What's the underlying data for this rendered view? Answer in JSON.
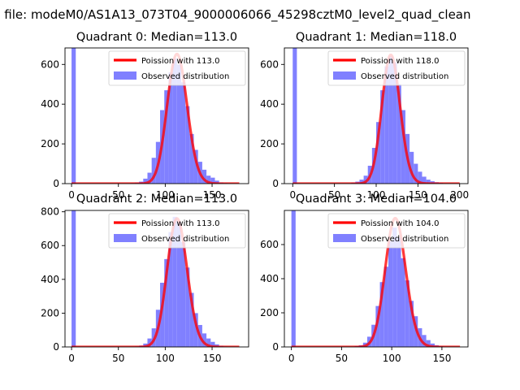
{
  "figure": {
    "suptitle": "n file: modeM0/AS1A13_073T04_9000006066_45298cztM0_level2_quad_clean"
  },
  "chart_data": [
    {
      "type": "bar",
      "title": "Quadrant 0: Median=113.0",
      "xlim": [
        -7,
        189
      ],
      "ylim": [
        0,
        683
      ],
      "xticks": [
        0,
        50,
        100,
        150
      ],
      "yticks": [
        0,
        200,
        400,
        600
      ],
      "legend_position": "top-right",
      "legend": [
        {
          "label": "Poission with 113.0",
          "color": "#ff0000",
          "kind": "line"
        },
        {
          "label": "Observed distribution",
          "color": "#8080ff",
          "kind": "patch"
        }
      ],
      "bin_width": 4.5,
      "observed": {
        "bin_starts": [
          0,
          63,
          67.5,
          72,
          76.5,
          81,
          85.5,
          90,
          94.5,
          99,
          103.5,
          108,
          112.5,
          117,
          121.5,
          126,
          130.5,
          135,
          139.5,
          144,
          148.5,
          153,
          157.5,
          162,
          166.5
        ],
        "counts": [
          690,
          3,
          5,
          10,
          25,
          55,
          130,
          210,
          370,
          470,
          560,
          630,
          600,
          510,
          390,
          250,
          170,
          110,
          70,
          40,
          30,
          15,
          6,
          3,
          2
        ]
      },
      "poisson": {
        "lambda": 113.0,
        "scale": 652,
        "x_min": 0,
        "x_max": 179
      }
    },
    {
      "type": "bar",
      "title": "Quadrant 1: Median=118.0",
      "xlim": [
        -10,
        210
      ],
      "ylim": [
        0,
        683
      ],
      "xticks": [
        0,
        50,
        100,
        150,
        200
      ],
      "yticks": [
        0,
        200,
        400,
        600
      ],
      "legend_position": "top-right",
      "legend": [
        {
          "label": "Poission with 118.0",
          "color": "#ff0000",
          "kind": "line"
        },
        {
          "label": "Observed distribution",
          "color": "#8080ff",
          "kind": "patch"
        }
      ],
      "bin_width": 5,
      "observed": {
        "bin_starts": [
          0,
          70,
          75,
          80,
          85,
          90,
          95,
          100,
          105,
          110,
          115,
          120,
          125,
          130,
          135,
          140,
          145,
          150,
          155,
          160,
          165,
          170,
          175,
          180
        ],
        "counts": [
          690,
          5,
          10,
          20,
          40,
          90,
          180,
          310,
          470,
          590,
          640,
          610,
          500,
          370,
          250,
          160,
          100,
          60,
          35,
          20,
          12,
          7,
          4,
          2
        ]
      },
      "poisson": {
        "lambda": 118.0,
        "scale": 648,
        "x_min": 0,
        "x_max": 200
      }
    },
    {
      "type": "bar",
      "title": "Quadrant 2: Median=113.0",
      "xlim": [
        -7,
        189
      ],
      "ylim": [
        0,
        808
      ],
      "xticks": [
        0,
        50,
        100,
        150
      ],
      "yticks": [
        0,
        200,
        400,
        600,
        800
      ],
      "legend_position": "top-right",
      "legend": [
        {
          "label": "Poission with 113.0",
          "color": "#ff0000",
          "kind": "line"
        },
        {
          "label": "Observed distribution",
          "color": "#8080ff",
          "kind": "patch"
        }
      ],
      "bin_width": 4.5,
      "observed": {
        "bin_starts": [
          0,
          67.5,
          72,
          76.5,
          81,
          85.5,
          90,
          94.5,
          99,
          103.5,
          108,
          112.5,
          117,
          121.5,
          126,
          130.5,
          135,
          139.5,
          144,
          148.5,
          153,
          157.5,
          162
        ],
        "counts": [
          810,
          3,
          8,
          20,
          50,
          110,
          220,
          380,
          520,
          680,
          770,
          740,
          620,
          470,
          320,
          200,
          130,
          80,
          50,
          30,
          15,
          7,
          3
        ]
      },
      "poisson": {
        "lambda": 113.0,
        "scale": 760,
        "x_min": 0,
        "x_max": 179
      }
    },
    {
      "type": "bar",
      "title": "Quadrant 3: Median=104.0",
      "xlim": [
        -7,
        176
      ],
      "ylim": [
        0,
        800
      ],
      "xticks": [
        0,
        50,
        100,
        150
      ],
      "yticks": [
        0,
        200,
        400,
        600
      ],
      "legend_position": "top-right",
      "legend": [
        {
          "label": "Poission with 104.0",
          "color": "#ff0000",
          "kind": "line"
        },
        {
          "label": "Observed distribution",
          "color": "#8080ff",
          "kind": "patch"
        }
      ],
      "bin_width": 4.2,
      "observed": {
        "bin_starts": [
          0,
          63,
          67.2,
          71.4,
          75.6,
          79.8,
          84,
          88.2,
          92.4,
          96.6,
          100.8,
          105,
          109.2,
          113.4,
          117.6,
          121.8,
          126,
          130.2,
          134.4,
          138.6,
          142.8,
          147,
          151.2
        ],
        "counts": [
          810,
          5,
          10,
          25,
          60,
          130,
          240,
          380,
          470,
          620,
          700,
          640,
          520,
          390,
          270,
          180,
          110,
          70,
          40,
          20,
          10,
          5,
          2
        ]
      },
      "poisson": {
        "lambda": 104.0,
        "scale": 754,
        "x_min": 0,
        "x_max": 168
      }
    }
  ],
  "colors": {
    "observed": "#8080ff",
    "poisson": "#ff0000"
  }
}
